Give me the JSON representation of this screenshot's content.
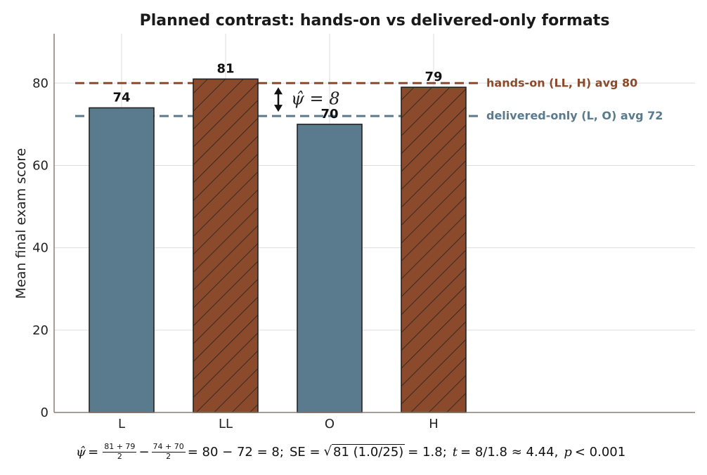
{
  "chart_data": {
    "type": "bar",
    "title": "Planned contrast: hands-on vs delivered-only formats",
    "xlabel": "",
    "ylabel": "Mean final exam score",
    "categories": [
      "L",
      "LL",
      "O",
      "H"
    ],
    "values": [
      74,
      81,
      70,
      79
    ],
    "data_labels": [
      "74",
      "81",
      "70",
      "79"
    ],
    "groups": [
      "delivered-only",
      "hands-on",
      "delivered-only",
      "hands-on"
    ],
    "ylim": [
      0,
      92
    ],
    "yticks": [
      0,
      20,
      40,
      60,
      80
    ],
    "ytick_labels": [
      "0",
      "20",
      "40",
      "60",
      "80"
    ],
    "grid": true,
    "reference_lines": [
      {
        "value": 80,
        "label": "hands-on (LL, H) avg 80",
        "color": "#8b4a2b",
        "style": "dashed"
      },
      {
        "value": 72,
        "label": "delivered-only (L, O) avg 72",
        "color": "#5a7a8e",
        "style": "dashed"
      }
    ],
    "annotation": {
      "text": "ψ̂ = 8",
      "from": 72,
      "to": 80
    },
    "colors": {
      "delivered_only": "#5a7a8e",
      "hands_on": "#8b4a2b",
      "edge": "#222222"
    }
  },
  "formula": {
    "psi": "ψ̂",
    "eq": "=",
    "f1_num": "81 + 79",
    "f1_den": "2",
    "minus": "−",
    "f2_num": "74 + 70",
    "f2_den": "2",
    "result": "= 80 − 72 = 8;",
    "se_prefix": "SE =",
    "se_radical": "81 (1.0/25)",
    "se_result": "= 1.8;",
    "t_var": "t",
    "t_expr": "= 8/1.8 ≈ 4.44,",
    "p_var": "p",
    "p_expr": "< 0.001"
  }
}
